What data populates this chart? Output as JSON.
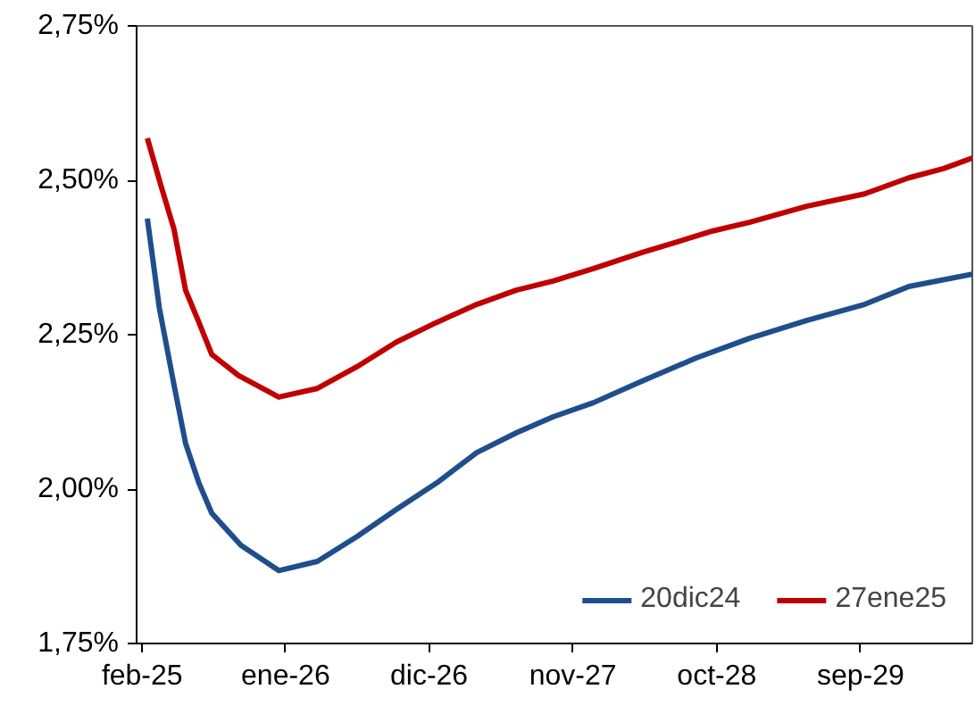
{
  "chart_data": {
    "type": "line",
    "xlim": [
      "2025-01-19",
      "2030-05-19"
    ],
    "xticks": [
      {
        "value": "2025-02",
        "label": "feb-25"
      },
      {
        "value": "2026-01",
        "label": "ene-26"
      },
      {
        "value": "2026-12",
        "label": "dic-26"
      },
      {
        "value": "2027-11",
        "label": "nov-27"
      },
      {
        "value": "2028-10",
        "label": "oct-28"
      },
      {
        "value": "2029-09",
        "label": "sep-29"
      }
    ],
    "ylim": [
      1.75,
      2.75
    ],
    "yticks": [
      {
        "value": 1.75,
        "label": "1,75%"
      },
      {
        "value": 2.0,
        "label": "2,00%"
      },
      {
        "value": 2.25,
        "label": "2,25%"
      },
      {
        "value": 2.5,
        "label": "2,50%"
      },
      {
        "value": 2.75,
        "label": "2,75%"
      }
    ],
    "grid": false,
    "legend": "bottom right",
    "line_style": "solid",
    "marker": "none",
    "series": [
      {
        "name": "20dic24",
        "color": "#1f4e8c",
        "x": [
          "2025-02-13",
          "2025-03-13",
          "2025-04-16",
          "2025-05-13",
          "2025-06-13",
          "2025-07-13",
          "2025-09-19",
          "2025-12-16",
          "2026-03-16",
          "2026-06-16",
          "2026-09-16",
          "2026-12-19",
          "2027-03-22",
          "2027-06-22",
          "2027-09-16",
          "2027-12-19",
          "2028-04-10",
          "2028-08-13",
          "2028-12-16",
          "2029-04-28",
          "2029-09-10",
          "2029-12-22",
          "2030-05-19"
        ],
        "values": [
          2.438,
          2.293,
          2.169,
          2.074,
          2.01,
          1.961,
          1.909,
          1.868,
          1.883,
          1.923,
          1.967,
          2.01,
          2.059,
          2.091,
          2.117,
          2.14,
          2.175,
          2.212,
          2.244,
          2.273,
          2.299,
          2.328,
          2.348
        ]
      },
      {
        "name": "27ene25",
        "color": "#c00000",
        "x": [
          "2025-02-13",
          "2025-03-16",
          "2025-04-16",
          "2025-05-13",
          "2025-06-13",
          "2025-07-13",
          "2025-09-13",
          "2025-12-16",
          "2026-03-16",
          "2026-06-16",
          "2026-09-16",
          "2026-12-19",
          "2027-03-22",
          "2027-06-22",
          "2027-09-16",
          "2027-12-19",
          "2028-04-10",
          "2028-09-22",
          "2028-12-16",
          "2029-04-28",
          "2029-09-10",
          "2029-12-22",
          "2030-03-13",
          "2030-05-19"
        ],
        "values": [
          2.568,
          2.493,
          2.421,
          2.322,
          2.27,
          2.218,
          2.184,
          2.149,
          2.163,
          2.198,
          2.238,
          2.27,
          2.299,
          2.322,
          2.337,
          2.357,
          2.383,
          2.418,
          2.432,
          2.458,
          2.478,
          2.504,
          2.519,
          2.536
        ]
      }
    ]
  }
}
